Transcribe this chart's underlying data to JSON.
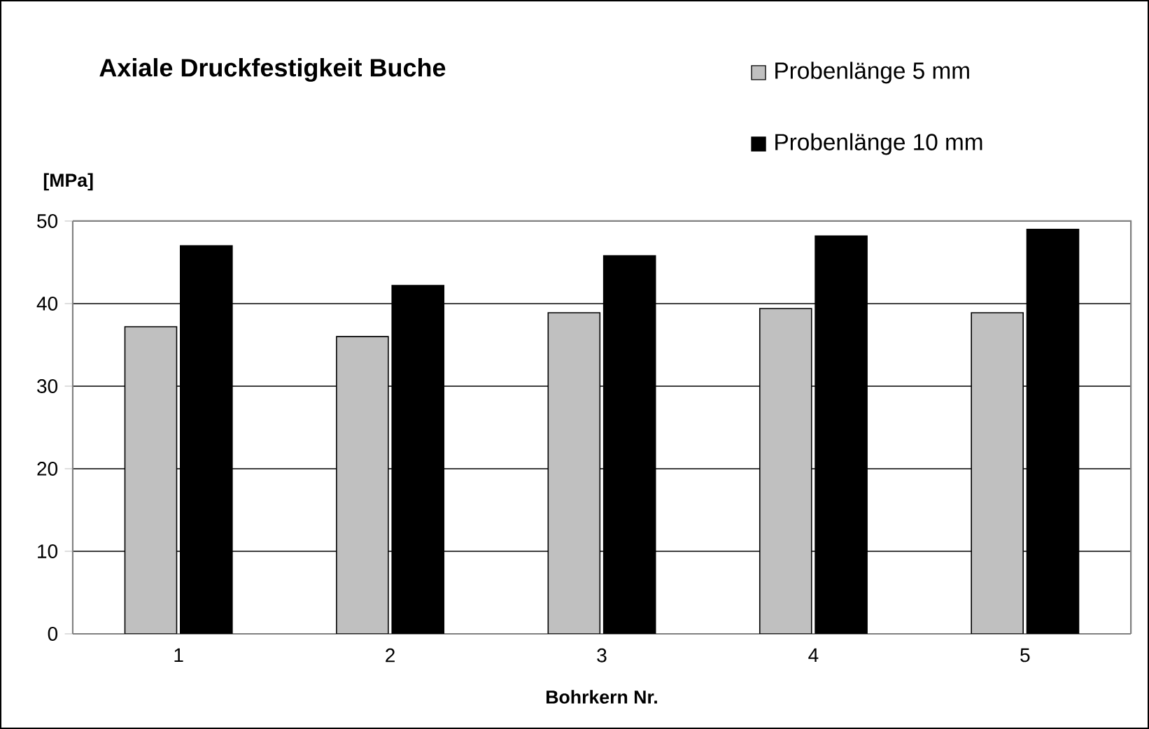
{
  "chart_data": {
    "type": "bar",
    "title": "Axiale Druckfestigkeit Buche",
    "xlabel": "Bohrkern Nr.",
    "ylabel": "[MPa]",
    "categories": [
      "1",
      "2",
      "3",
      "4",
      "5"
    ],
    "series": [
      {
        "name": "Probenlänge 5 mm",
        "color": "#c0c0c0",
        "values": [
          37.2,
          36.0,
          38.9,
          39.4,
          38.9
        ]
      },
      {
        "name": "Probenlänge 10 mm",
        "color": "#000000",
        "values": [
          47.0,
          42.2,
          45.8,
          48.2,
          49.0
        ]
      }
    ],
    "ylim": [
      0,
      50
    ],
    "yticks": [
      0,
      10,
      20,
      30,
      40,
      50
    ],
    "grid": "y",
    "legend": "top right"
  }
}
